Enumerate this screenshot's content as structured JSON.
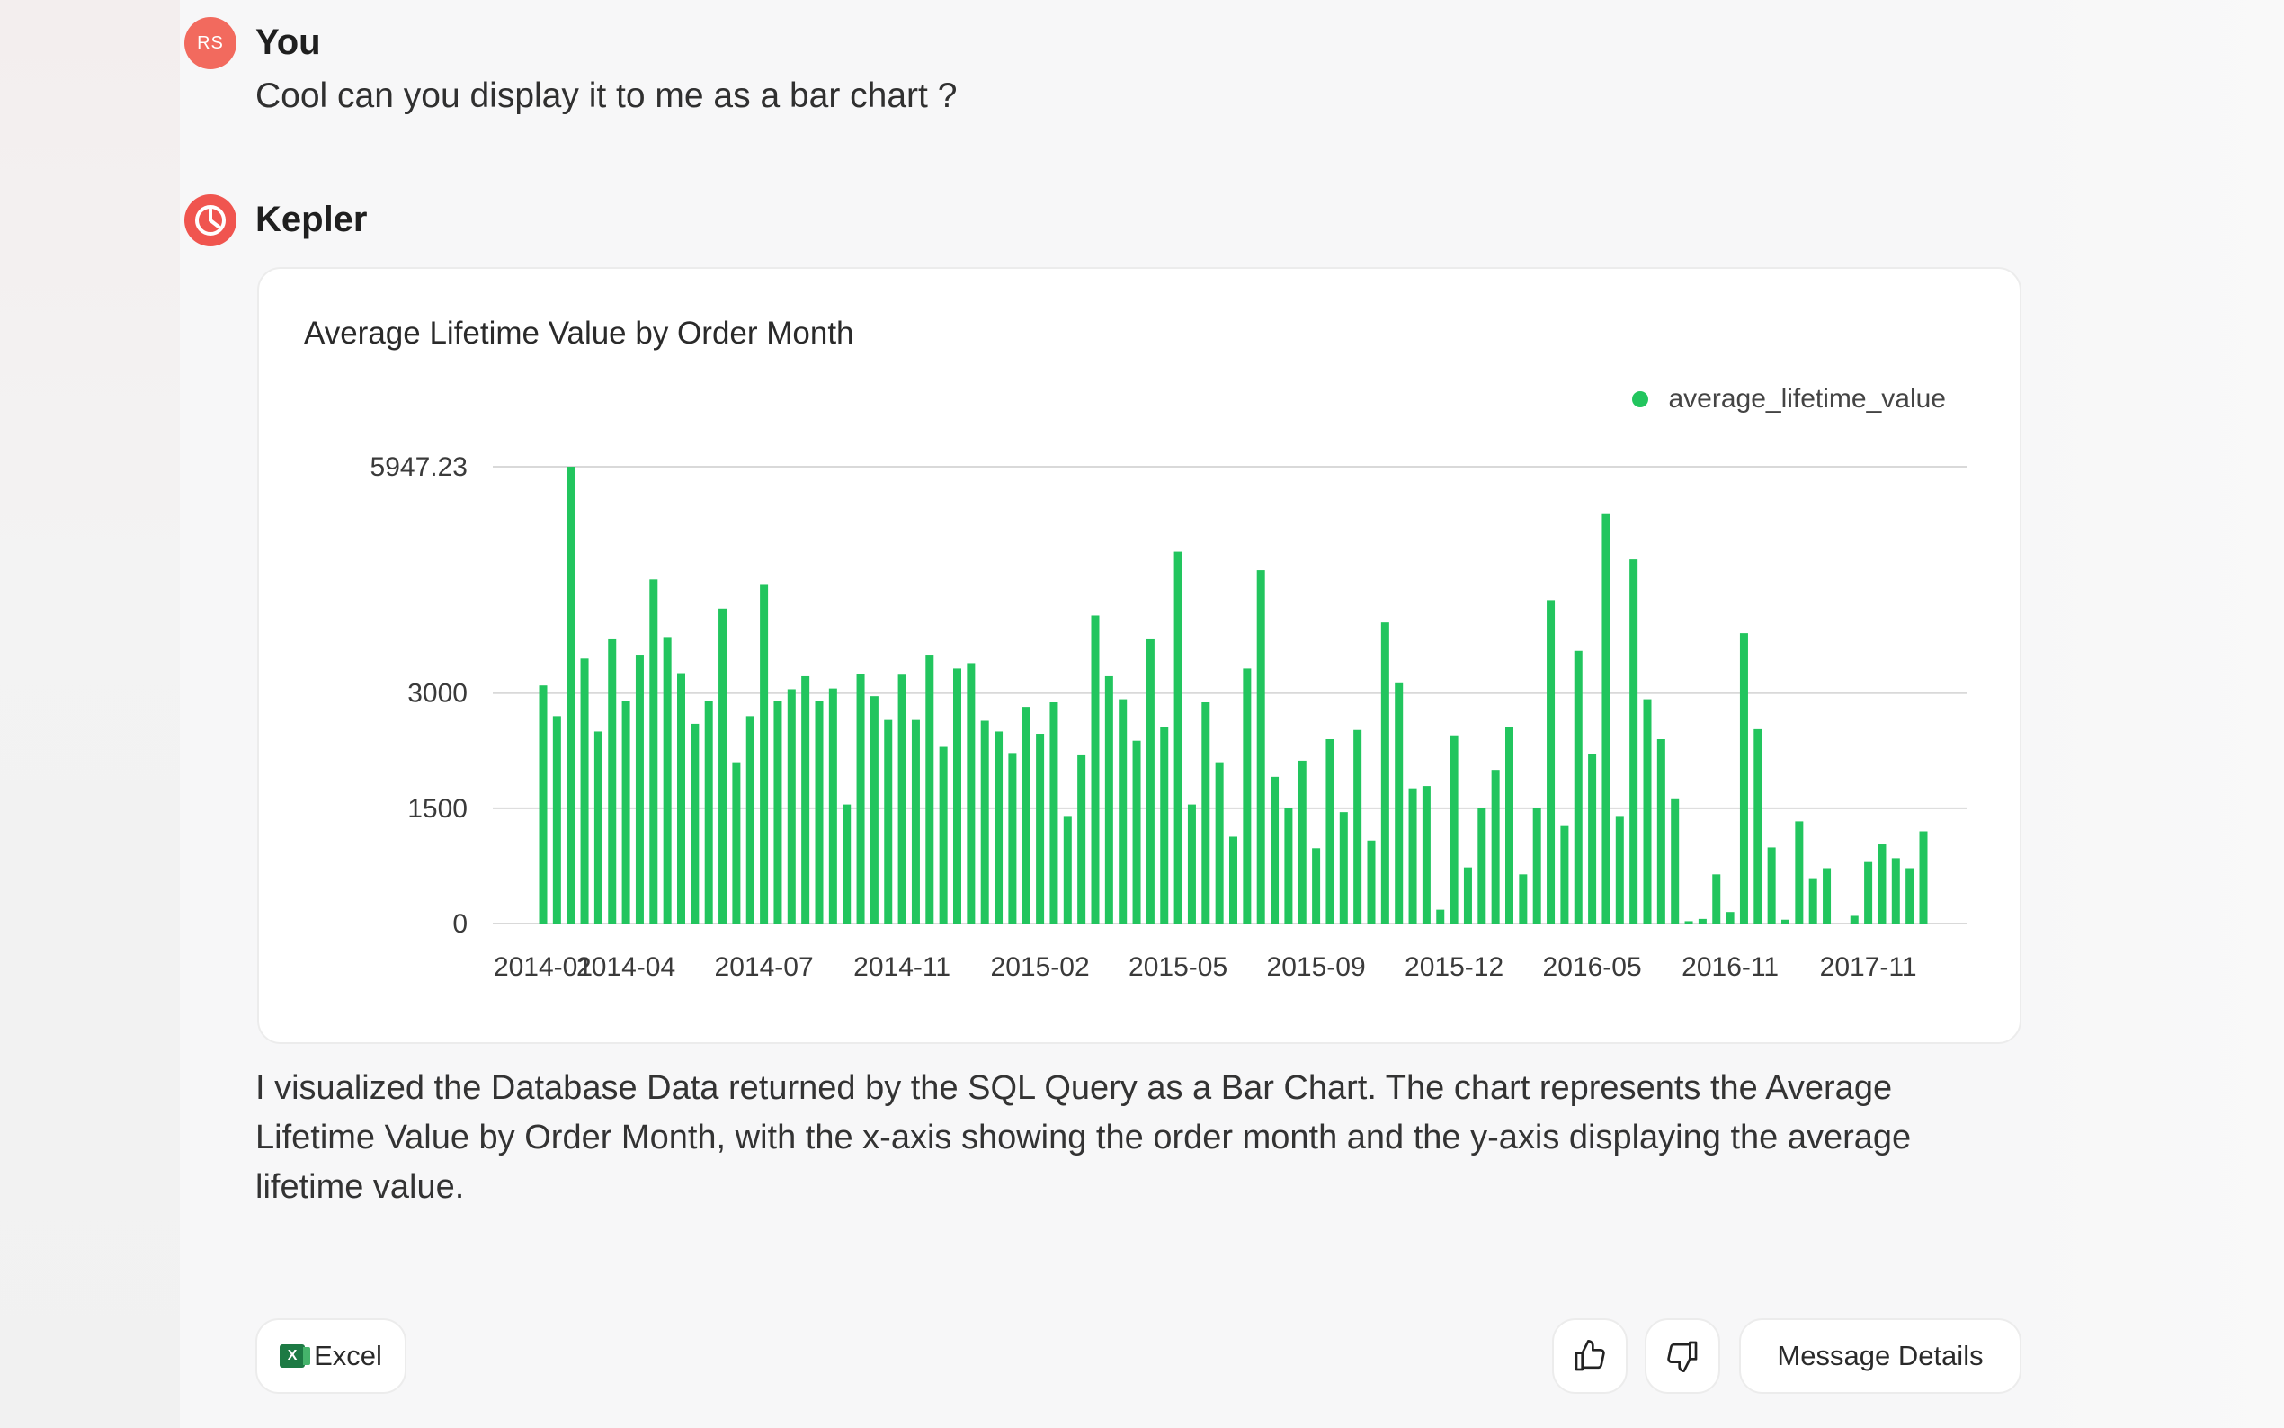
{
  "user_message": {
    "avatar_initials": "RS",
    "author": "You",
    "text": "Cool can you display it to me as a bar chart ?"
  },
  "bot_message": {
    "author": "Kepler",
    "explanation": "I visualized the Database Data returned by the SQL Query as a Bar Chart. The chart represents the Average Lifetime Value by Order Month, with the x-axis showing the order month and the y-axis displaying the average lifetime value."
  },
  "actions": {
    "excel_label": "Excel",
    "excel_icon": "excel-icon",
    "like_icon": "thumbs-up-icon",
    "dislike_icon": "thumbs-down-icon",
    "details_label": "Message Details"
  },
  "colors": {
    "accent": "#f0554f",
    "bar": "#22c55e"
  },
  "chart_data": {
    "type": "bar",
    "title": "Average Lifetime Value by Order Month",
    "legend": "average_lifetime_value",
    "legend_position": "top-right",
    "grid": true,
    "ylim": [
      0,
      5947.23
    ],
    "ytick_labels": [
      "0",
      "1500",
      "3000",
      "5947.23"
    ],
    "ytick_values": [
      0,
      1500,
      3000,
      5947.23
    ],
    "xtick_labels": [
      "2014-01",
      "2014-04",
      "2014-07",
      "2014-11",
      "2015-02",
      "2015-05",
      "2015-09",
      "2015-12",
      "2016-05",
      "2016-11",
      "2017-11"
    ],
    "xtick_indices": [
      0,
      6,
      16,
      26,
      36,
      46,
      56,
      66,
      76,
      86,
      96
    ],
    "series": [
      {
        "name": "average_lifetime_value",
        "values": [
          3100,
          2700,
          5947,
          3450,
          2500,
          3700,
          2900,
          3500,
          4480,
          3730,
          3260,
          2600,
          2900,
          4100,
          2100,
          2700,
          4420,
          2900,
          3050,
          3220,
          2900,
          3060,
          1550,
          3250,
          2960,
          2650,
          3240,
          2650,
          3500,
          2300,
          3320,
          3390,
          2640,
          2500,
          2220,
          2820,
          2470,
          2880,
          1400,
          2190,
          4010,
          3220,
          2920,
          2380,
          3700,
          2560,
          4840,
          1550,
          2880,
          2100,
          1130,
          3320,
          4600,
          1910,
          1510,
          2120,
          980,
          2400,
          1450,
          2520,
          1080,
          3920,
          3140,
          1760,
          1790,
          180,
          2450,
          730,
          1500,
          2000,
          2560,
          640,
          1510,
          4210,
          1280,
          3550,
          2210,
          5330,
          1400,
          4740,
          2920,
          2400,
          1630,
          30,
          60,
          640,
          150,
          3780,
          2530,
          990,
          50,
          1330,
          590,
          720,
          0,
          100,
          800,
          1030,
          850,
          720,
          1200
        ]
      }
    ]
  }
}
